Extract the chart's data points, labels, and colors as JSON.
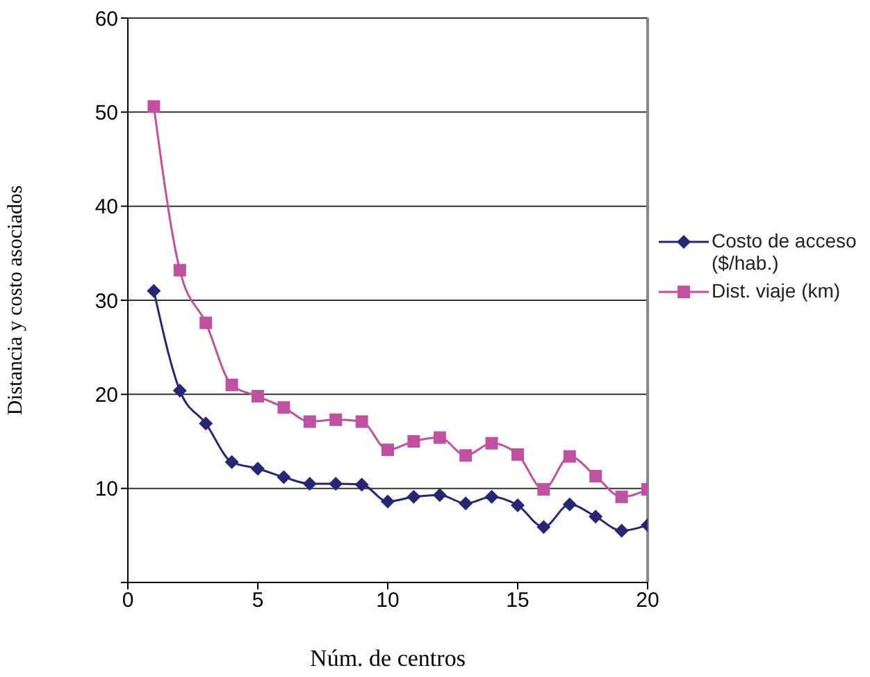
{
  "chart_data": {
    "type": "line",
    "xlabel": "Núm. de centros",
    "ylabel": "Distancia y costo asociados",
    "x": [
      1,
      2,
      3,
      4,
      5,
      6,
      7,
      8,
      9,
      10,
      11,
      12,
      13,
      14,
      15,
      16,
      17,
      18,
      19,
      20
    ],
    "series": [
      {
        "name": "Costo de acceso ($/hab.)",
        "color": "#262673",
        "marker": "diamond",
        "values": [
          31,
          20.4,
          16.9,
          12.8,
          12.1,
          11.2,
          10.5,
          10.5,
          10.4,
          8.6,
          9.1,
          9.3,
          8.4,
          9.1,
          8.2,
          5.9,
          8.3,
          7.0,
          5.5,
          6.1
        ]
      },
      {
        "name": "Dist. viaje (km)",
        "color": "#c050a0",
        "marker": "square",
        "values": [
          50.6,
          33.2,
          27.6,
          21.0,
          19.8,
          18.6,
          17.1,
          17.3,
          17.1,
          14.1,
          15.0,
          15.4,
          13.5,
          14.8,
          13.6,
          9.9,
          13.4,
          11.3,
          9.1,
          9.9
        ]
      }
    ],
    "xlim": [
      0,
      20
    ],
    "xticks": [
      0,
      5,
      10,
      15,
      20
    ],
    "ylim": [
      0,
      60
    ],
    "yticks": [
      {
        "value": 0,
        "label": null
      },
      10,
      20,
      30,
      40,
      50,
      60
    ],
    "grid": "y",
    "legend": "right"
  }
}
